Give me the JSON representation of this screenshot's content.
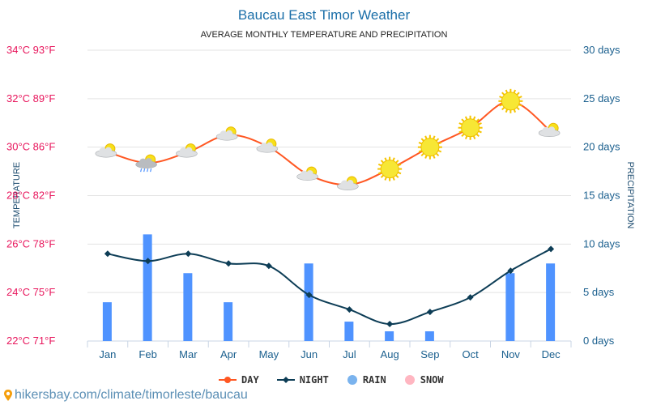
{
  "chart_data": {
    "type": "line",
    "title": "Baucau East Timor Weather",
    "subtitle": "AVERAGE MONTHLY TEMPERATURE AND PRECIPITATION",
    "ylabel": "TEMPERATURE",
    "y2label": "PRECIPITATION",
    "categories": [
      "Jan",
      "Feb",
      "Mar",
      "Apr",
      "May",
      "Jun",
      "Jul",
      "Aug",
      "Sep",
      "Oct",
      "Nov",
      "Dec"
    ],
    "ylim": [
      22,
      34
    ],
    "y2lim": [
      0,
      30
    ],
    "y_ticks": [
      "22°C 71°F",
      "24°C 75°F",
      "26°C 78°F",
      "28°C 82°F",
      "30°C 86°F",
      "32°C 89°F",
      "34°C 93°F"
    ],
    "y2_ticks": [
      "0 days",
      "5 days",
      "10 days",
      "15 days",
      "20 days",
      "25 days",
      "30 days"
    ],
    "series": [
      {
        "name": "DAY",
        "type": "line",
        "color": "#ff5722",
        "values": [
          29.8,
          29.35,
          29.8,
          30.5,
          30.0,
          28.85,
          28.45,
          29.1,
          30.0,
          30.8,
          31.9,
          30.65
        ]
      },
      {
        "name": "NIGHT",
        "type": "line",
        "color": "#0d3d56",
        "values": [
          25.6,
          25.3,
          25.6,
          25.2,
          25.1,
          23.9,
          23.3,
          22.7,
          23.2,
          23.8,
          24.9,
          25.8
        ]
      },
      {
        "name": "RAIN",
        "type": "bar",
        "axis": "right",
        "color": "#4f93ff",
        "values": [
          4,
          11,
          7,
          4,
          0,
          8,
          2,
          1,
          1,
          0,
          7,
          8
        ]
      },
      {
        "name": "SNOW",
        "type": "bar",
        "axis": "right",
        "color": "#ffb6c1",
        "values": [
          0,
          0,
          0,
          0,
          0,
          0,
          0,
          0,
          0,
          0,
          0,
          0
        ]
      }
    ],
    "weather_icons": [
      "cloud-sun",
      "rain-cloud-sun",
      "cloud-sun",
      "cloud-sun",
      "cloud-sun",
      "cloud-sun",
      "cloud-sun",
      "sun",
      "sun",
      "sun",
      "sun",
      "cloud-sun"
    ],
    "grid": true,
    "legend_position": "bottom"
  },
  "legend": {
    "day": "DAY",
    "night": "NIGHT",
    "rain": "RAIN",
    "snow": "SNOW"
  },
  "footer": {
    "url": "hikersbay.com/climate/timorleste/baucau"
  }
}
